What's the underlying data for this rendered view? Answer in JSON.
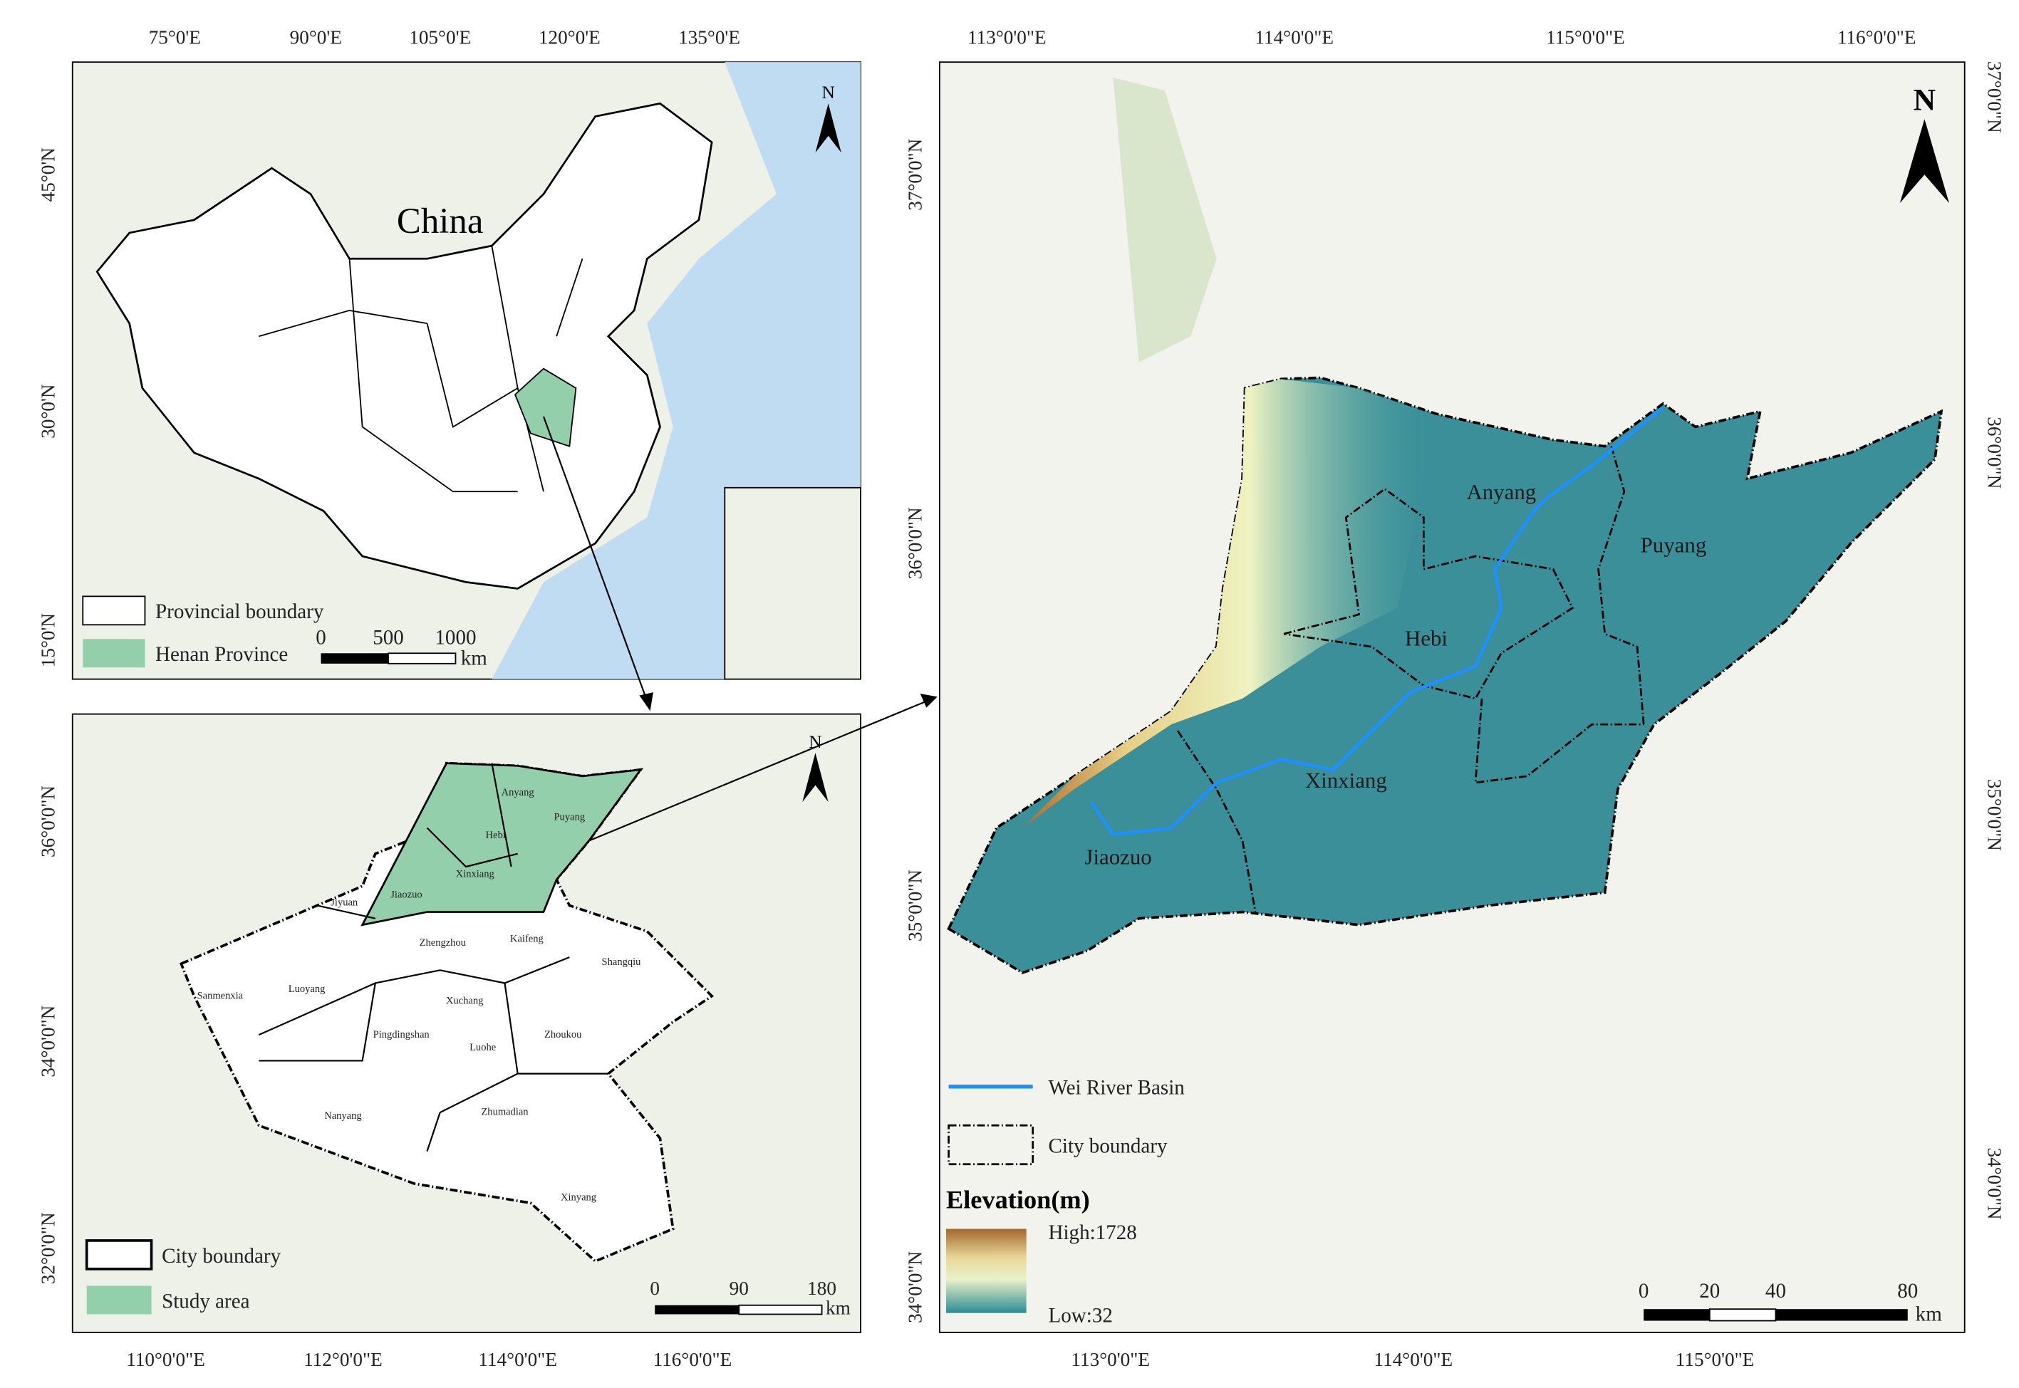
{
  "china_map": {
    "title": "China",
    "lon_labels": [
      "75°0'E",
      "90°0'E",
      "105°0'E",
      "120°0'E",
      "135°0'E"
    ],
    "lat_labels": [
      "45°0'N",
      "30°0'N",
      "15°0'N"
    ],
    "legend": [
      "Provincial boundary",
      "Henan Province"
    ],
    "scale": {
      "labels": [
        "0",
        "500",
        "1000"
      ],
      "unit": "km"
    },
    "north": "N"
  },
  "henan_map": {
    "lon_labels": [
      "110°0'0\"E",
      "112°0'0\"E",
      "114°0'0\"E",
      "116°0'0\"E"
    ],
    "lat_labels": [
      "36°0'0\"N",
      "34°0'0\"N",
      "32°0'0\"N"
    ],
    "cities": [
      "Anyang",
      "Puyang",
      "Hebi",
      "Xinxiang",
      "Jiaozuo",
      "Jiyuan",
      "Zhengzhou",
      "Kaifeng",
      "Shangqiu",
      "Sanmenxia",
      "Luoyang",
      "Xuchang",
      "Pingdingshan",
      "Luohe",
      "Zhoukou",
      "Nanyang",
      "Zhumadian",
      "Xinyang"
    ],
    "legend": [
      "City boundary",
      "Study area"
    ],
    "scale": {
      "labels": [
        "0",
        "90",
        "180"
      ],
      "unit": "km"
    },
    "north": "N"
  },
  "study_area_map": {
    "top_lon_labels": [
      "113°0'0\"E",
      "114°0'0\"E",
      "115°0'0\"E",
      "116°0'0\"E"
    ],
    "bottom_lon_labels": [
      "113°0'0\"E",
      "114°0'0\"E",
      "115°0'0\"E"
    ],
    "left_lat_labels": [
      "37°0'0\"N",
      "36°0'0\"N",
      "35°0'0\"N",
      "34°0'0\"N"
    ],
    "right_lat_labels": [
      "37°0'0\"N",
      "36°0'0\"N",
      "35°0'0\"N",
      "34°0'0\"N"
    ],
    "cities": [
      "Anyang",
      "Puyang",
      "Hebi",
      "Xinxiang",
      "Jiaozuo"
    ],
    "legend": [
      "Wei River Basin",
      "City boundary"
    ],
    "elevation": {
      "title": "Elevation(m)",
      "high": "High:1728",
      "low": "Low:32"
    },
    "scale": {
      "labels": [
        "0",
        "20",
        "40",
        "80"
      ],
      "unit": "km"
    },
    "north": "N"
  }
}
